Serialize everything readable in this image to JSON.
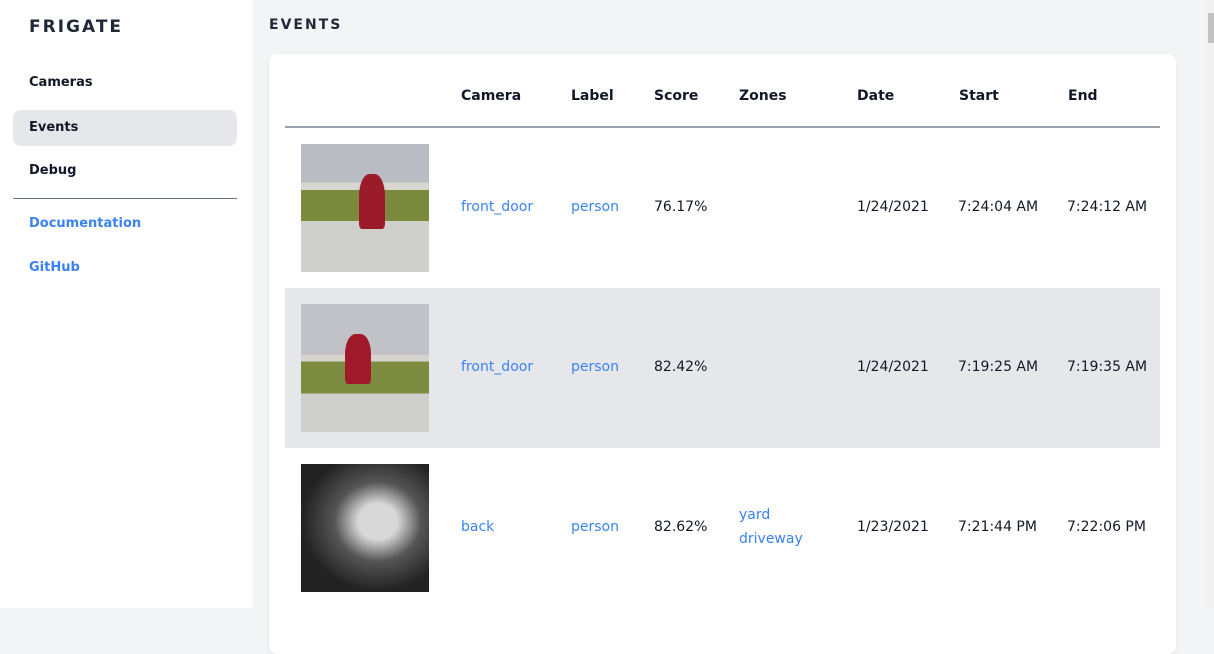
{
  "sidebar": {
    "brand": "FRIGATE",
    "items": [
      {
        "label": "Cameras"
      },
      {
        "label": "Events",
        "active": true
      },
      {
        "label": "Debug"
      }
    ],
    "links": [
      {
        "label": "Documentation"
      },
      {
        "label": "GitHub"
      }
    ]
  },
  "page": {
    "title": "EVENTS"
  },
  "table": {
    "headers": [
      "Camera",
      "Label",
      "Score",
      "Zones",
      "Date",
      "Start",
      "End"
    ],
    "rows": [
      {
        "camera": "front_door",
        "label": "person",
        "score": "76.17%",
        "zones": [],
        "date": "1/24/2021",
        "start": "7:24:04 AM",
        "end": "7:24:12 AM"
      },
      {
        "camera": "front_door",
        "label": "person",
        "score": "82.42%",
        "zones": [],
        "date": "1/24/2021",
        "start": "7:19:25 AM",
        "end": "7:19:35 AM"
      },
      {
        "camera": "back",
        "label": "person",
        "score": "82.62%",
        "zones": [
          "yard",
          "driveway"
        ],
        "date": "1/23/2021",
        "start": "7:21:44 PM",
        "end": "7:22:06 PM"
      }
    ]
  },
  "colors": {
    "link": "#3b82f6",
    "active_bg": "#e5e7eb"
  }
}
